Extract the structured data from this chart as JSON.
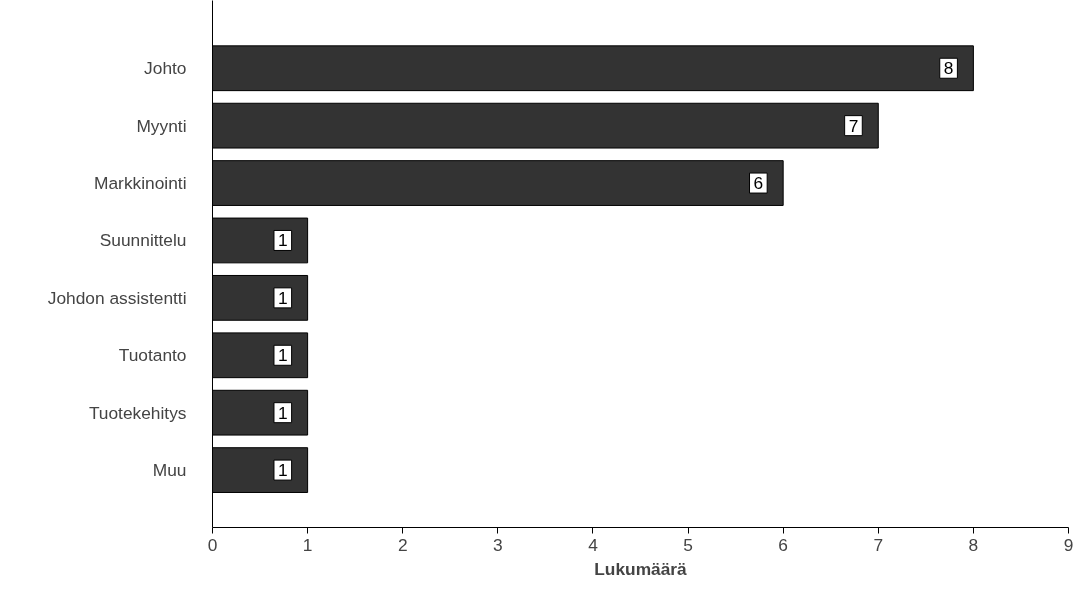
{
  "chart_data": {
    "type": "bar",
    "orientation": "horizontal",
    "xlabel": "Lukumäärä",
    "categories": [
      "Johto",
      "Myynti",
      "Markkinointi",
      "Suunnittelu",
      "Johdon assistentti",
      "Tuotanto",
      "Tuotekehitys",
      "Muu"
    ],
    "values": [
      8,
      7,
      6,
      1,
      1,
      1,
      1,
      1
    ],
    "color": "#333333",
    "xlim": [
      0,
      9
    ],
    "xticks": [
      0,
      1,
      2,
      3,
      4,
      5,
      6,
      7,
      8,
      9
    ],
    "grid": false,
    "data_labels": true
  }
}
